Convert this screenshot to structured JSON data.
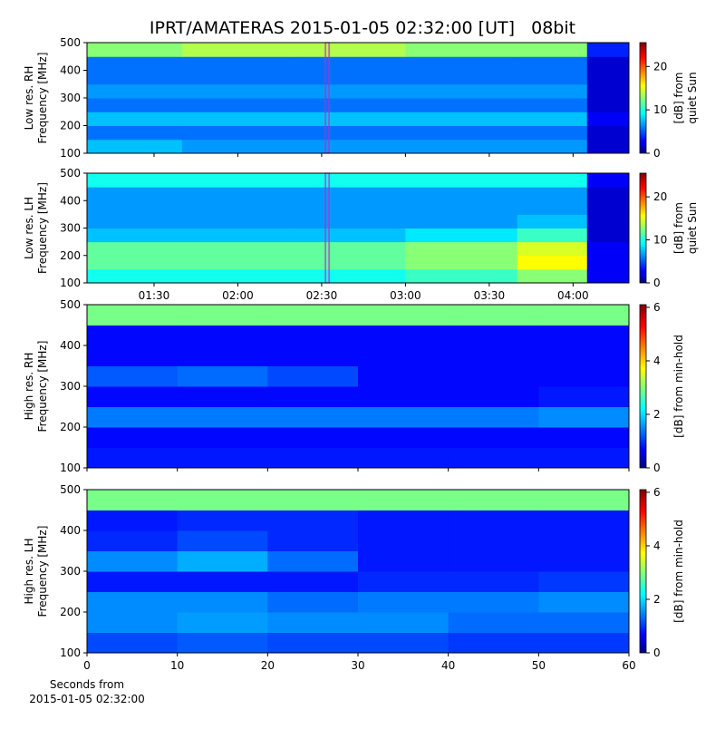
{
  "chart_data": [
    {
      "type": "heatmap",
      "title": "IPRT/AMATERAS 2015-01-05 02:32:00 [UT]   08bit",
      "ylabel": [
        "Low res. RH",
        "Frequency [MHz]"
      ],
      "colorbar_label": [
        "[dB] from",
        "quiet Sun"
      ],
      "xlim": [
        66,
        260
      ],
      "xticks": [
        90,
        120,
        150,
        180,
        210,
        240
      ],
      "show_xtick_labels": false,
      "ylim": [
        100,
        500
      ],
      "yticks": [
        100,
        200,
        300,
        400,
        500
      ],
      "clim": [
        0,
        25.5
      ],
      "cticks": [
        0,
        10,
        20
      ],
      "cursor_x": 152,
      "x_edges": [
        66,
        100,
        140,
        180,
        220,
        245,
        260
      ],
      "y_edges": [
        100,
        150,
        200,
        250,
        300,
        350,
        400,
        450,
        500
      ],
      "z": [
        [
          8,
          7,
          7,
          7,
          7,
          2
        ],
        [
          6,
          6,
          6,
          6,
          6,
          2
        ],
        [
          8,
          8,
          8,
          8,
          8,
          3
        ],
        [
          6,
          6,
          6,
          6,
          6,
          2
        ],
        [
          7,
          7,
          7,
          7,
          7,
          2
        ],
        [
          6,
          6,
          6,
          6,
          6,
          2
        ],
        [
          6,
          6,
          6,
          6,
          6,
          2
        ],
        [
          13,
          14,
          14,
          13,
          13,
          4
        ]
      ]
    },
    {
      "type": "heatmap",
      "ylabel": [
        "Low res. LH",
        "Frequency [MHz]"
      ],
      "colorbar_label": [
        "[dB] from",
        "quiet Sun"
      ],
      "xlim": [
        66,
        260
      ],
      "xticks": [
        {
          "value": 90,
          "label": "01:30"
        },
        {
          "value": 120,
          "label": "02:00"
        },
        {
          "value": 150,
          "label": "02:30"
        },
        {
          "value": 180,
          "label": "03:00"
        },
        {
          "value": 210,
          "label": "03:30"
        },
        {
          "value": 240,
          "label": "04:00"
        }
      ],
      "show_xtick_labels": true,
      "ylim": [
        100,
        500
      ],
      "yticks": [
        100,
        200,
        300,
        400,
        500
      ],
      "clim": [
        0,
        25.5
      ],
      "cticks": [
        0,
        10,
        20
      ],
      "cursor_x": 152,
      "x_edges": [
        66,
        100,
        140,
        180,
        220,
        245,
        260
      ],
      "y_edges": [
        100,
        150,
        200,
        250,
        300,
        350,
        400,
        450,
        500
      ],
      "z": [
        [
          10,
          10,
          10,
          11,
          13,
          3
        ],
        [
          12,
          12,
          12,
          13,
          16,
          3
        ],
        [
          12,
          12,
          12,
          13,
          15,
          3
        ],
        [
          8,
          8,
          8,
          9,
          11,
          2
        ],
        [
          7,
          7,
          7,
          7,
          8,
          2
        ],
        [
          7,
          7,
          7,
          7,
          7,
          2
        ],
        [
          7,
          7,
          7,
          7,
          7,
          2
        ],
        [
          10,
          10,
          10,
          10,
          10,
          3
        ]
      ]
    },
    {
      "type": "heatmap",
      "ylabel": [
        "High res. RH",
        "Frequency [MHz]"
      ],
      "colorbar_label": [
        "[dB] from min-hold"
      ],
      "xlim": [
        0,
        60
      ],
      "xticks": [
        0,
        10,
        20,
        30,
        40,
        50,
        60
      ],
      "show_xtick_labels": false,
      "ylim": [
        100,
        500
      ],
      "yticks": [
        100,
        200,
        300,
        400,
        500
      ],
      "clim": [
        0,
        6.1
      ],
      "cticks": [
        0,
        2,
        4,
        6
      ],
      "x_edges": [
        0,
        10,
        20,
        30,
        40,
        50,
        60
      ],
      "y_edges": [
        100,
        150,
        200,
        250,
        300,
        350,
        400,
        450,
        500
      ],
      "z": [
        [
          0.9,
          0.9,
          0.9,
          0.9,
          0.9,
          0.9
        ],
        [
          0.8,
          0.8,
          0.8,
          0.8,
          0.8,
          0.8
        ],
        [
          1.5,
          1.5,
          1.5,
          1.5,
          1.5,
          1.6
        ],
        [
          0.8,
          0.8,
          0.8,
          0.8,
          0.8,
          0.9
        ],
        [
          1.3,
          1.4,
          1.2,
          0.8,
          0.8,
          0.8
        ],
        [
          0.8,
          0.8,
          0.8,
          0.8,
          0.8,
          0.8
        ],
        [
          0.8,
          0.8,
          0.8,
          0.8,
          0.8,
          0.8
        ],
        [
          3,
          3,
          3,
          3,
          3,
          3
        ]
      ]
    },
    {
      "type": "heatmap",
      "ylabel": [
        "High res. LH",
        "Frequency [MHz]"
      ],
      "colorbar_label": [
        "[dB] from min-hold"
      ],
      "xlabel": [
        "Seconds from",
        "2015-01-05 02:32:00"
      ],
      "xlim": [
        0,
        60
      ],
      "xticks": [
        0,
        10,
        20,
        30,
        40,
        50,
        60
      ],
      "show_xtick_labels": true,
      "ylim": [
        100,
        500
      ],
      "yticks": [
        100,
        200,
        300,
        400,
        500
      ],
      "clim": [
        0,
        6.1
      ],
      "cticks": [
        0,
        2,
        4,
        6
      ],
      "x_edges": [
        0,
        10,
        20,
        30,
        40,
        50,
        60
      ],
      "y_edges": [
        100,
        150,
        200,
        250,
        300,
        350,
        400,
        450,
        500
      ],
      "z": [
        [
          1.2,
          1.3,
          1.2,
          1.2,
          1.1,
          1.1
        ],
        [
          1.6,
          1.7,
          1.6,
          1.6,
          1.4,
          1.4
        ],
        [
          1.6,
          1.6,
          1.4,
          1.5,
          1.5,
          1.6
        ],
        [
          0.9,
          0.9,
          0.9,
          1,
          1,
          1.1
        ],
        [
          1.6,
          1.8,
          1.4,
          0.9,
          0.9,
          0.9
        ],
        [
          1,
          1.2,
          1,
          0.9,
          0.9,
          0.9
        ],
        [
          0.9,
          1,
          1,
          0.9,
          0.9,
          0.9
        ],
        [
          3,
          3,
          3,
          3,
          3,
          3
        ]
      ]
    }
  ]
}
